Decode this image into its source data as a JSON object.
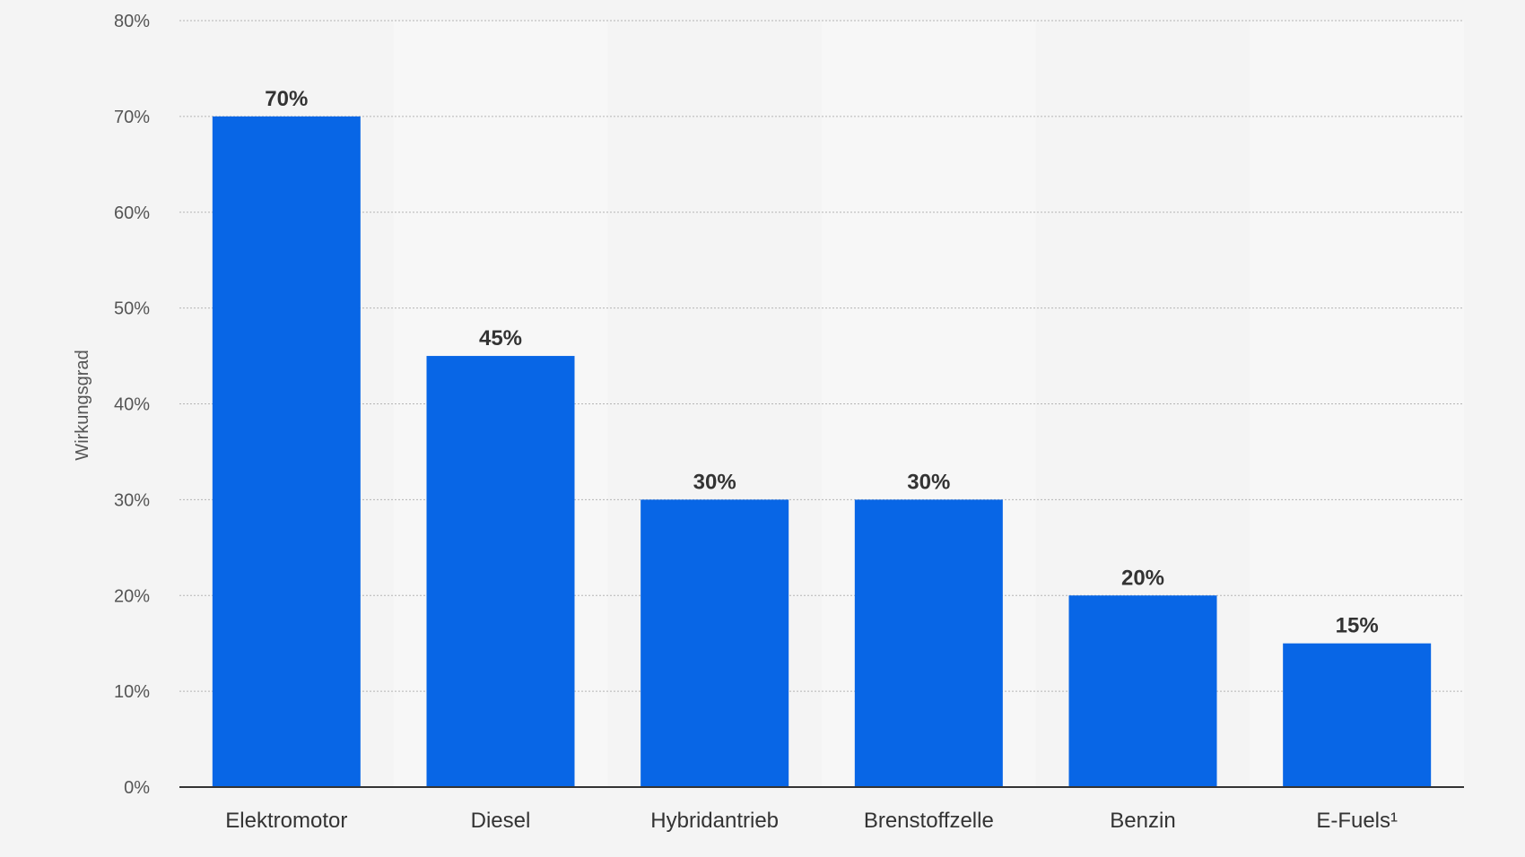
{
  "chart_data": {
    "type": "bar",
    "categories": [
      "Elektromotor",
      "Diesel",
      "Hybridantrieb",
      "Brenstoffzelle",
      "Benzin",
      "E-Fuels¹"
    ],
    "values": [
      70,
      45,
      30,
      30,
      20,
      15
    ],
    "value_labels": [
      "70%",
      "45%",
      "30%",
      "30%",
      "20%",
      "15%"
    ],
    "ylabel": "Wirkungsgrad",
    "xlabel": "",
    "ylim": [
      0,
      80
    ],
    "yticks": [
      0,
      10,
      20,
      30,
      40,
      50,
      60,
      70,
      80
    ],
    "ytick_labels": [
      "0%",
      "10%",
      "20%",
      "30%",
      "40%",
      "50%",
      "60%",
      "70%",
      "80%"
    ],
    "grid": true,
    "bar_color": "#0866e6",
    "band_color": "#f7f7f7",
    "background": "#f4f4f4"
  }
}
